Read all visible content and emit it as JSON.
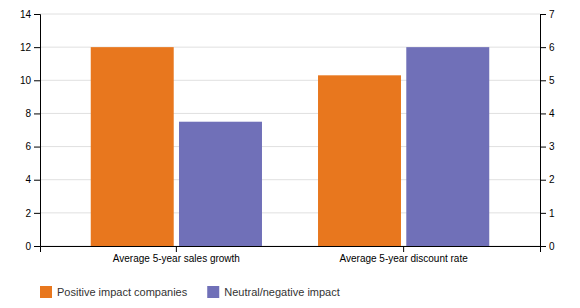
{
  "chart_data": {
    "type": "bar",
    "categories": [
      "Average 5-year sales growth",
      "Average 5-year discount rate"
    ],
    "series": [
      {
        "name": "Positive impact companies",
        "color": "#E8771E",
        "values": [
          12.0,
          10.3
        ]
      },
      {
        "name": "Neutral/negative impact",
        "color": "#7070B8",
        "values": [
          7.5,
          12.0
        ]
      }
    ],
    "ylim": [
      0,
      14
    ],
    "yticks": [
      0,
      2,
      4,
      6,
      8,
      10,
      12,
      14
    ],
    "y2lim": [
      0,
      7
    ],
    "y2ticks": [
      0,
      1,
      2,
      3,
      4,
      5,
      6,
      7
    ],
    "grid": true,
    "legend": "bottom"
  }
}
